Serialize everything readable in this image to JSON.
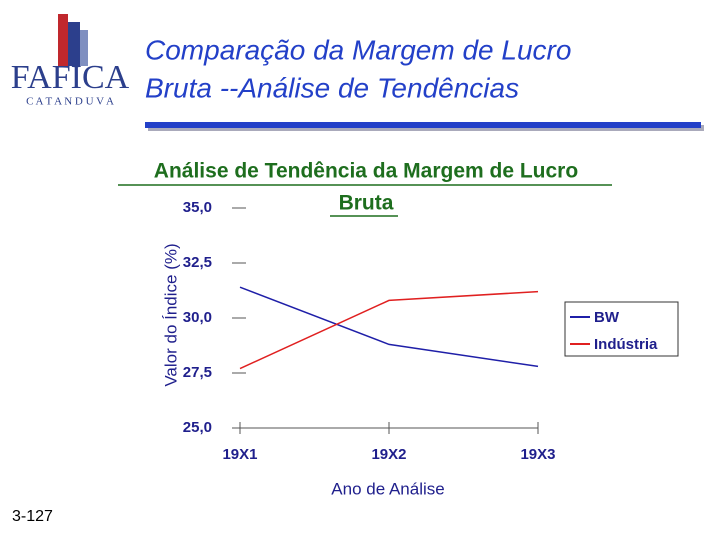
{
  "slide": {
    "title": [
      "Comparação da Margem de Lucro",
      "Bruta --Análise de Tendências"
    ],
    "logo": {
      "name": "FAFICA",
      "city": "C A T A N D U V A"
    },
    "page": "3-127"
  },
  "chart_data": {
    "type": "line",
    "title": [
      "Análise de Tendência da Margem de Lucro",
      "Bruta"
    ],
    "x_label": "Ano de Análise",
    "y_label": "Valor do Índice (%)",
    "categories": [
      "19X1",
      "19X2",
      "19X3"
    ],
    "series": [
      {
        "name": "BW",
        "color": "#1f1fa8",
        "values": [
          31.4,
          28.8,
          27.8
        ]
      },
      {
        "name": "Indústria",
        "color": "#e02020",
        "values": [
          27.7,
          30.8,
          31.2
        ]
      }
    ],
    "ylim": [
      25,
      35
    ],
    "yticks": [
      {
        "value": 25,
        "label": "25,0"
      },
      {
        "value": 27.5,
        "label": "27,5"
      },
      {
        "value": 30,
        "label": "30,0"
      },
      {
        "value": 32.5,
        "label": "32,5"
      },
      {
        "value": 35,
        "label": "35,0"
      }
    ],
    "grid": false,
    "legend": "right"
  }
}
